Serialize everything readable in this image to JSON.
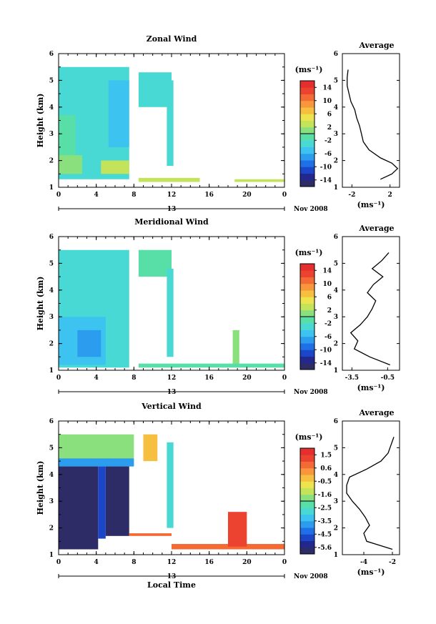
{
  "chart_data": [
    {
      "type": "heatmap",
      "title": "Zonal Wind",
      "ylabel": "Height (km)",
      "x_ticks": [
        "0",
        "4",
        "8",
        "12",
        "16",
        "20",
        "0"
      ],
      "y_ticks": [
        "1",
        "2",
        "3",
        "4",
        "5",
        "6"
      ],
      "xlim": [
        0,
        24
      ],
      "ylim": [
        1,
        6
      ],
      "date_label": "13",
      "date_suffix": "Nov 2008",
      "colorbar": {
        "unit": "(ms⁻¹)",
        "ticks": [
          "14",
          "10",
          "6",
          "2",
          "-2",
          "-6",
          "-10",
          "-14"
        ],
        "range": [
          -16,
          16
        ]
      },
      "average": {
        "title": "Average",
        "x_ticks": [
          "-2",
          "2"
        ],
        "x_tick_values": [
          -2,
          2
        ],
        "xlim": [
          -3,
          3
        ],
        "xlabel": "(ms⁻¹)",
        "heights": [
          1.3,
          1.5,
          1.7,
          1.9,
          2.1,
          2.4,
          2.7,
          3.0,
          3.3,
          3.6,
          3.9,
          4.2,
          4.5,
          4.8,
          5.1,
          5.4
        ],
        "values": [
          1.0,
          2.2,
          2.8,
          2.2,
          1.0,
          -0.2,
          -0.8,
          -1.0,
          -1.2,
          -1.5,
          -1.7,
          -2.1,
          -2.3,
          -2.5,
          -2.5,
          -2.4
        ]
      },
      "regions": [
        {
          "t0": 0,
          "t1": 7.5,
          "h0": 1.3,
          "h1": 5.5,
          "value": -4
        },
        {
          "t0": 0,
          "t1": 2.5,
          "h0": 1.5,
          "h1": 2.2,
          "value": 1
        },
        {
          "t0": 0,
          "t1": 1.8,
          "h0": 2.2,
          "h1": 3.7,
          "value": -1
        },
        {
          "t0": 4.5,
          "t1": 7.5,
          "h0": 1.5,
          "h1": 2.0,
          "value": 2
        },
        {
          "t0": 5.3,
          "t1": 7.5,
          "h0": 2.5,
          "h1": 5.0,
          "value": -6
        },
        {
          "t0": 8.5,
          "t1": 12.0,
          "h0": 4.0,
          "h1": 5.3,
          "value": -4
        },
        {
          "t0": 11.5,
          "t1": 12.2,
          "h0": 1.8,
          "h1": 5.0,
          "value": -4
        },
        {
          "t0": 8.5,
          "t1": 15.0,
          "h0": 1.2,
          "h1": 1.35,
          "value": 2
        },
        {
          "t0": 18.7,
          "t1": 24.0,
          "h0": 1.2,
          "h1": 1.3,
          "value": 2
        }
      ]
    },
    {
      "type": "heatmap",
      "title": "Meridional Wind",
      "ylabel": "Height (km)",
      "x_ticks": [
        "0",
        "4",
        "8",
        "12",
        "16",
        "20",
        "0"
      ],
      "y_ticks": [
        "1",
        "2",
        "3",
        "4",
        "5",
        "6"
      ],
      "xlim": [
        0,
        24
      ],
      "ylim": [
        1,
        6
      ],
      "date_label": "13",
      "date_suffix": "Nov 2008",
      "colorbar": {
        "unit": "(ms⁻¹)",
        "ticks": [
          "14",
          "10",
          "6",
          "2",
          "-2",
          "-6",
          "-10",
          "-14"
        ],
        "range": [
          -16,
          16
        ]
      },
      "average": {
        "title": "Average",
        "x_ticks": [
          "-3.5",
          "-0.5"
        ],
        "x_tick_values": [
          -3.5,
          -0.5
        ],
        "xlim": [
          -4.3,
          0.5
        ],
        "xlabel": "(ms⁻¹)",
        "heights": [
          1.2,
          1.5,
          1.8,
          2.1,
          2.4,
          2.7,
          3.0,
          3.3,
          3.6,
          3.9,
          4.2,
          4.5,
          4.8,
          5.1,
          5.4
        ],
        "values": [
          -0.3,
          -2.0,
          -3.3,
          -3.0,
          -3.6,
          -2.8,
          -2.2,
          -1.8,
          -1.5,
          -2.2,
          -1.7,
          -0.9,
          -1.8,
          -1.0,
          -0.4
        ]
      },
      "regions": [
        {
          "t0": 0,
          "t1": 7.5,
          "h0": 1.1,
          "h1": 5.5,
          "value": -4
        },
        {
          "t0": 0,
          "t1": 5.0,
          "h0": 1.2,
          "h1": 3.0,
          "value": -6
        },
        {
          "t0": 2.0,
          "t1": 4.5,
          "h0": 1.5,
          "h1": 2.5,
          "value": -7
        },
        {
          "t0": 8.5,
          "t1": 12.0,
          "h0": 4.5,
          "h1": 5.5,
          "value": -2
        },
        {
          "t0": 11.5,
          "t1": 12.2,
          "h0": 1.5,
          "h1": 4.8,
          "value": -3
        },
        {
          "t0": 18.5,
          "t1": 19.2,
          "h0": 1.2,
          "h1": 2.5,
          "value": 0
        },
        {
          "t0": 8.5,
          "t1": 24.0,
          "h0": 1.1,
          "h1": 1.25,
          "value": -1
        }
      ]
    },
    {
      "type": "heatmap",
      "title": "Vertical Wind",
      "ylabel": "Height (km)",
      "xlabel": "Local Time",
      "x_ticks": [
        "0",
        "4",
        "8",
        "12",
        "16",
        "20",
        "0"
      ],
      "y_ticks": [
        "1",
        "2",
        "3",
        "4",
        "5",
        "6"
      ],
      "xlim": [
        0,
        24
      ],
      "ylim": [
        1,
        6
      ],
      "date_label": "13",
      "date_suffix": "Nov 2008",
      "colorbar": {
        "unit": "(ms⁻¹)",
        "ticks": [
          "1.5",
          "0.6",
          "-0.5",
          "-1.6",
          "-2.5",
          "-3.5",
          "-4.5",
          "-5.6"
        ],
        "range": [
          -6.1,
          2.0
        ]
      },
      "average": {
        "title": "Average",
        "x_ticks": [
          "-4",
          "-2"
        ],
        "x_tick_values": [
          -4,
          -2
        ],
        "xlim": [
          -5.5,
          -1.5
        ],
        "xlabel": "(ms⁻¹)",
        "heights": [
          1.2,
          1.5,
          1.8,
          2.1,
          2.4,
          2.7,
          3.0,
          3.3,
          3.6,
          3.9,
          4.2,
          4.5,
          4.8,
          5.1,
          5.4
        ],
        "values": [
          -2.0,
          -3.8,
          -4.0,
          -3.6,
          -3.9,
          -4.3,
          -4.8,
          -5.2,
          -5.2,
          -5.0,
          -3.8,
          -2.8,
          -2.3,
          -2.1,
          -1.9
        ]
      },
      "regions": [
        {
          "t0": 0,
          "t1": 8.0,
          "h0": 4.3,
          "h1": 5.5,
          "value": -2
        },
        {
          "t0": 0,
          "t1": 8.0,
          "h0": 4.3,
          "h1": 4.6,
          "value": -4
        },
        {
          "t0": 0,
          "t1": 4.2,
          "h0": 1.2,
          "h1": 4.3,
          "value": -6
        },
        {
          "t0": 4.2,
          "t1": 5.0,
          "h0": 1.6,
          "h1": 4.3,
          "value": -5
        },
        {
          "t0": 5.0,
          "t1": 7.5,
          "h0": 1.7,
          "h1": 4.3,
          "value": -6
        },
        {
          "t0": 9.0,
          "t1": 10.5,
          "h0": 4.5,
          "h1": 5.5,
          "value": -0.5
        },
        {
          "t0": 11.5,
          "t1": 12.2,
          "h0": 2.0,
          "h1": 5.2,
          "value": -3
        },
        {
          "t0": 7.5,
          "t1": 12.0,
          "h0": 1.7,
          "h1": 1.8,
          "value": 0.5
        },
        {
          "t0": 12.0,
          "t1": 24.0,
          "h0": 1.2,
          "h1": 1.4,
          "value": 0.5
        },
        {
          "t0": 18.0,
          "t1": 20.0,
          "h0": 1.3,
          "h1": 2.6,
          "value": 1.0
        }
      ]
    }
  ]
}
